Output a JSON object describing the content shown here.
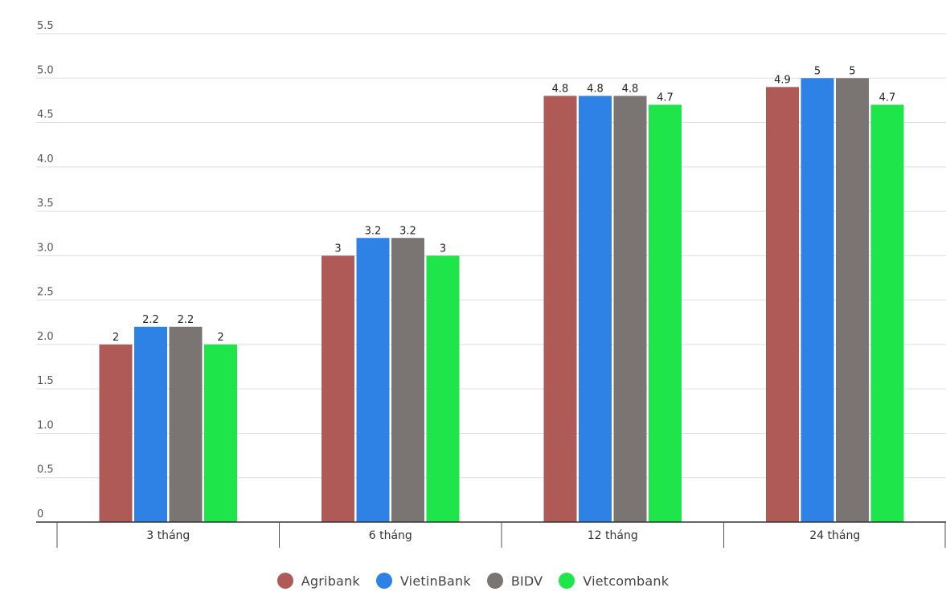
{
  "chart_data": {
    "type": "bar",
    "categories": [
      "3 tháng",
      "6 tháng",
      "12 tháng",
      "24 tháng"
    ],
    "series": [
      {
        "name": "Agribank",
        "color": "#b05a58",
        "values": [
          2,
          3,
          4.8,
          4.9
        ]
      },
      {
        "name": "VietinBank",
        "color": "#2e82e5",
        "values": [
          2.2,
          3.2,
          4.8,
          5
        ]
      },
      {
        "name": "BIDV",
        "color": "#7a7473",
        "values": [
          2.2,
          3.2,
          4.8,
          5
        ]
      },
      {
        "name": "Vietcombank",
        "color": "#1ee64a",
        "values": [
          2,
          3,
          4.7,
          4.7
        ]
      }
    ],
    "ylim": [
      0,
      5.5
    ],
    "yticks": [
      "0",
      "0.5",
      "1.0",
      "1.5",
      "2.0",
      "2.5",
      "3.0",
      "3.5",
      "4.0",
      "4.5",
      "5.0",
      "5.5"
    ],
    "grid": true,
    "legend_position": "bottom-center",
    "title": "",
    "xlabel": "",
    "ylabel": ""
  }
}
